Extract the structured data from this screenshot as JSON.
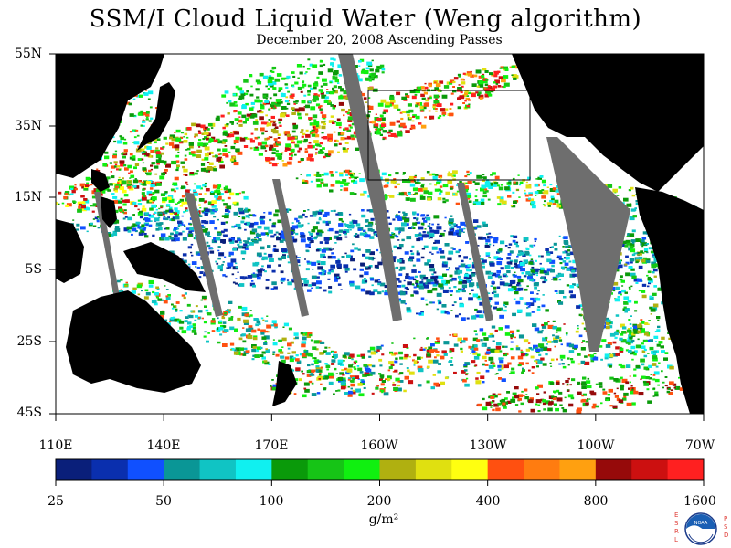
{
  "title": "SSM/I Cloud Liquid Water (Weng algorithm)",
  "subtitle": "December 20, 2008  Ascending Passes",
  "lat_labels": [
    "55N",
    "35N",
    "15N",
    "5S",
    "25S",
    "45S"
  ],
  "lon_labels": [
    "110E",
    "140E",
    "170E",
    "160W",
    "130W",
    "100W",
    "70W"
  ],
  "colorbar": {
    "tick_labels": [
      "25",
      "50",
      "100",
      "200",
      "400",
      "800",
      "1600"
    ],
    "unit": "g/m²",
    "colors": [
      "#0a1f7a",
      "#0a2fae",
      "#1050ff",
      "#0a9696",
      "#10c4c4",
      "#10f0f0",
      "#0a9a0a",
      "#16c416",
      "#10f010",
      "#b0b010",
      "#e0e010",
      "#ffff10",
      "#ff5010",
      "#ff7c10",
      "#ffa010",
      "#960a0a",
      "#cc1010",
      "#ff2020"
    ]
  },
  "map": {
    "land_color": "#000000",
    "nodata_color": "#6e6e6e",
    "ocean_clear_color": "#ffffff"
  },
  "logo": {
    "left_letters": "ESRL",
    "right_letters": "PSD",
    "center_text": "NOAA"
  }
}
